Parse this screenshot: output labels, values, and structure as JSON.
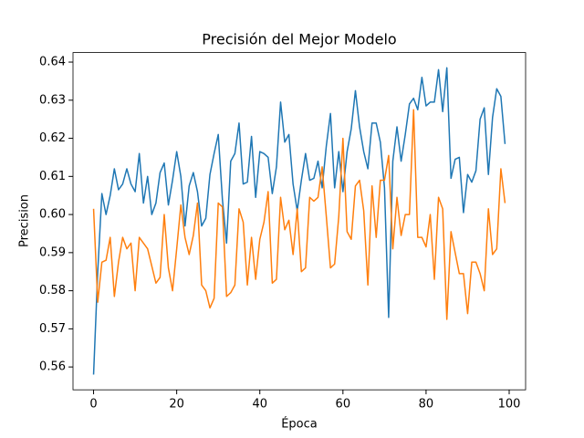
{
  "chart_data": {
    "type": "line",
    "title": "Precisión del Mejor Modelo",
    "xlabel": "Época",
    "ylabel": "Precision",
    "x": [
      0,
      1,
      2,
      3,
      4,
      5,
      6,
      7,
      8,
      9,
      10,
      11,
      12,
      13,
      14,
      15,
      16,
      17,
      18,
      19,
      20,
      21,
      22,
      23,
      24,
      25,
      26,
      27,
      28,
      29,
      30,
      31,
      32,
      33,
      34,
      35,
      36,
      37,
      38,
      39,
      40,
      41,
      42,
      43,
      44,
      45,
      46,
      47,
      48,
      49,
      50,
      51,
      52,
      53,
      54,
      55,
      56,
      57,
      58,
      59,
      60,
      61,
      62,
      63,
      64,
      65,
      66,
      67,
      68,
      69,
      70,
      71,
      72,
      73,
      74,
      75,
      76,
      77,
      78,
      79,
      80,
      81,
      82,
      83,
      84,
      85,
      86,
      87,
      88,
      89,
      90,
      91,
      92,
      93,
      94,
      95,
      96,
      97,
      98,
      99
    ],
    "series": [
      {
        "color": "#1f77b4",
        "values": [
          0.558,
          0.585,
          0.6055,
          0.6,
          0.605,
          0.612,
          0.6065,
          0.608,
          0.612,
          0.608,
          0.606,
          0.616,
          0.603,
          0.61,
          0.6,
          0.603,
          0.611,
          0.6135,
          0.6025,
          0.609,
          0.6165,
          0.61,
          0.597,
          0.6075,
          0.611,
          0.606,
          0.597,
          0.599,
          0.6105,
          0.616,
          0.621,
          0.604,
          0.5925,
          0.614,
          0.616,
          0.624,
          0.608,
          0.6085,
          0.6205,
          0.6045,
          0.6165,
          0.616,
          0.615,
          0.6055,
          0.6125,
          0.6295,
          0.619,
          0.621,
          0.608,
          0.601,
          0.609,
          0.616,
          0.609,
          0.6095,
          0.614,
          0.607,
          0.618,
          0.6265,
          0.607,
          0.6165,
          0.606,
          0.6165,
          0.6225,
          0.6325,
          0.623,
          0.6165,
          0.612,
          0.624,
          0.624,
          0.619,
          0.607,
          0.573,
          0.614,
          0.623,
          0.614,
          0.621,
          0.629,
          0.6305,
          0.6275,
          0.636,
          0.6285,
          0.6295,
          0.6295,
          0.638,
          0.627,
          0.6385,
          0.6095,
          0.6145,
          0.615,
          0.6005,
          0.6105,
          0.6085,
          0.6115,
          0.625,
          0.628,
          0.6105,
          0.6255,
          0.633,
          0.631,
          0.6185
        ]
      },
      {
        "color": "#ff7f0e",
        "values": [
          0.6015,
          0.577,
          0.5875,
          0.588,
          0.594,
          0.5785,
          0.5875,
          0.594,
          0.591,
          0.5925,
          0.58,
          0.594,
          0.5925,
          0.591,
          0.5865,
          0.582,
          0.5835,
          0.6,
          0.586,
          0.58,
          0.591,
          0.6025,
          0.594,
          0.5895,
          0.5945,
          0.603,
          0.5815,
          0.58,
          0.5755,
          0.578,
          0.603,
          0.602,
          0.5785,
          0.5795,
          0.5815,
          0.6015,
          0.598,
          0.5815,
          0.594,
          0.583,
          0.5935,
          0.598,
          0.606,
          0.582,
          0.583,
          0.6045,
          0.596,
          0.5985,
          0.5895,
          0.6015,
          0.585,
          0.586,
          0.6045,
          0.6035,
          0.6045,
          0.6125,
          0.5995,
          0.586,
          0.587,
          0.5995,
          0.62,
          0.5955,
          0.5935,
          0.6075,
          0.609,
          0.601,
          0.5815,
          0.6075,
          0.594,
          0.609,
          0.609,
          0.6155,
          0.591,
          0.6045,
          0.5945,
          0.6,
          0.6,
          0.6275,
          0.594,
          0.594,
          0.5915,
          0.6,
          0.583,
          0.6045,
          0.6015,
          0.5725,
          0.5955,
          0.59,
          0.5845,
          0.5845,
          0.574,
          0.5875,
          0.5875,
          0.5845,
          0.58,
          0.6015,
          0.5895,
          0.591,
          0.612,
          0.603
        ]
      }
    ],
    "xlim": [
      -4.95,
      103.95
    ],
    "xticks": [
      0,
      20,
      40,
      60,
      80,
      100
    ],
    "ylim": [
      0.554,
      0.6425
    ],
    "yticks": [
      0.56,
      0.57,
      0.58,
      0.59,
      {
        "value": 0.6,
        "label": "0.60"
      },
      0.61,
      0.62,
      0.63,
      0.64
    ]
  }
}
